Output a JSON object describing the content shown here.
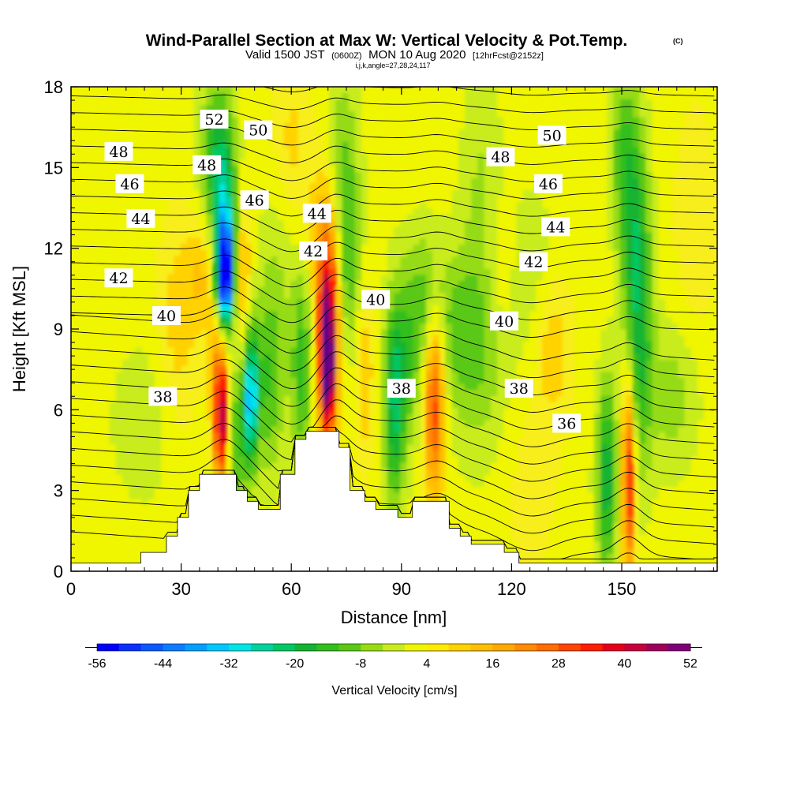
{
  "title": {
    "main": "Wind-Parallel Section at Max W: Vertical Velocity & Pot.Temp.",
    "copyright": "(C)",
    "valid_prefix": "Valid 1500 JST",
    "valid_utc": "(0600Z)",
    "valid_date": "MON 10 Aug 2020",
    "forecast": "[12hrFcst@2152z]",
    "indices": "i,j,k,angle=27,28,24,117"
  },
  "chart_data": {
    "type": "contour-section",
    "xlabel": "Distance [nm]",
    "ylabel": "Height [Kft MSL]",
    "xlim": [
      0,
      176
    ],
    "ylim": [
      0,
      18
    ],
    "x_ticks": [
      "0",
      "30",
      "60",
      "90",
      "120",
      "150"
    ],
    "x_tick_values": [
      0,
      30,
      60,
      90,
      120,
      150
    ],
    "y_ticks": [
      "0",
      "3",
      "6",
      "9",
      "12",
      "15",
      "18"
    ],
    "y_tick_values": [
      0,
      3,
      6,
      9,
      12,
      15,
      18
    ],
    "colorbar": {
      "label": "Vertical Velocity [cm/s]",
      "tick_labels": [
        "-56",
        "-44",
        "-32",
        "-20",
        "-8",
        "4",
        "16",
        "28",
        "40",
        "52"
      ],
      "tick_values": [
        -56,
        -44,
        -32,
        -20,
        -8,
        4,
        16,
        28,
        40,
        52
      ],
      "levels": [
        -56,
        -52,
        -48,
        -44,
        -40,
        -36,
        -32,
        -28,
        -24,
        -20,
        -16,
        -12,
        -8,
        -4,
        0,
        4,
        8,
        12,
        16,
        20,
        24,
        28,
        32,
        36,
        40,
        44,
        48,
        52
      ],
      "colors": [
        "#0000ff",
        "#0a32ff",
        "#0a5aff",
        "#0a7dff",
        "#00a0ff",
        "#00c8ff",
        "#00e6e6",
        "#00d2a0",
        "#00c864",
        "#14b432",
        "#32be1e",
        "#5ac814",
        "#96dc14",
        "#c8ec1e",
        "#f0f500",
        "#ffeb00",
        "#ffd200",
        "#ffbe00",
        "#ffaa00",
        "#ff8c00",
        "#ff6e00",
        "#ff4600",
        "#ff1e00",
        "#e6001e",
        "#c8003c",
        "#a0005a",
        "#80007a",
        "#5a008c"
      ]
    },
    "theta_contour_labels": [
      {
        "text": "52",
        "x": 39,
        "y": 16.8
      },
      {
        "text": "50",
        "x": 51,
        "y": 16.4
      },
      {
        "text": "48",
        "x": 13,
        "y": 15.6
      },
      {
        "text": "48",
        "x": 37,
        "y": 15.1
      },
      {
        "text": "46",
        "x": 16,
        "y": 14.4
      },
      {
        "text": "46",
        "x": 50,
        "y": 13.8
      },
      {
        "text": "44",
        "x": 19,
        "y": 13.1
      },
      {
        "text": "44",
        "x": 67,
        "y": 13.3
      },
      {
        "text": "42",
        "x": 13,
        "y": 10.9
      },
      {
        "text": "42",
        "x": 66,
        "y": 11.9
      },
      {
        "text": "40",
        "x": 26,
        "y": 9.5
      },
      {
        "text": "40",
        "x": 83,
        "y": 10.1
      },
      {
        "text": "38",
        "x": 25,
        "y": 6.5
      },
      {
        "text": "38",
        "x": 90,
        "y": 6.8
      },
      {
        "text": "50",
        "x": 131,
        "y": 16.2
      },
      {
        "text": "48",
        "x": 117,
        "y": 15.4
      },
      {
        "text": "46",
        "x": 130,
        "y": 14.4
      },
      {
        "text": "44",
        "x": 132,
        "y": 12.8
      },
      {
        "text": "42",
        "x": 126,
        "y": 11.5
      },
      {
        "text": "40",
        "x": 118,
        "y": 9.3
      },
      {
        "text": "38",
        "x": 122,
        "y": 6.8
      },
      {
        "text": "36",
        "x": 135,
        "y": 5.5
      }
    ],
    "terrain_profile": [
      [
        0,
        0.3
      ],
      [
        19,
        0.3
      ],
      [
        19,
        0.7
      ],
      [
        26,
        0.7
      ],
      [
        26,
        1.3
      ],
      [
        29,
        1.3
      ],
      [
        29,
        2.0
      ],
      [
        32,
        2.0
      ],
      [
        32,
        3.0
      ],
      [
        35,
        3.0
      ],
      [
        35,
        3.6
      ],
      [
        45,
        3.6
      ],
      [
        45,
        3.0
      ],
      [
        48,
        3.0
      ],
      [
        48,
        2.6
      ],
      [
        51,
        2.6
      ],
      [
        51,
        2.3
      ],
      [
        57,
        2.3
      ],
      [
        57,
        3.6
      ],
      [
        61,
        3.6
      ],
      [
        61,
        4.9
      ],
      [
        64,
        4.9
      ],
      [
        64,
        5.2
      ],
      [
        73,
        5.2
      ],
      [
        73,
        4.6
      ],
      [
        76,
        4.6
      ],
      [
        76,
        3.0
      ],
      [
        80,
        3.0
      ],
      [
        80,
        2.6
      ],
      [
        83,
        2.6
      ],
      [
        83,
        2.3
      ],
      [
        89,
        2.3
      ],
      [
        89,
        2.0
      ],
      [
        93,
        2.0
      ],
      [
        93,
        2.6
      ],
      [
        103,
        2.6
      ],
      [
        103,
        1.6
      ],
      [
        106,
        1.6
      ],
      [
        106,
        1.3
      ],
      [
        109,
        1.3
      ],
      [
        109,
        1.0
      ],
      [
        118,
        1.0
      ],
      [
        118,
        0.7
      ],
      [
        122,
        0.7
      ],
      [
        122,
        0.3
      ],
      [
        176,
        0.3
      ]
    ]
  }
}
